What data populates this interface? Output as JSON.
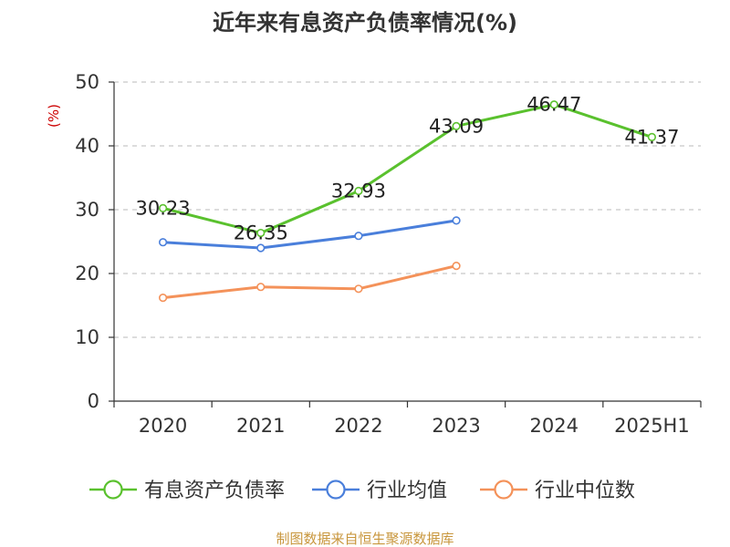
{
  "title": "近年来有息资产负债率情况(%)",
  "source": "制图数据来自恒生聚源数据库",
  "chart_data": {
    "type": "line",
    "title": "近年来有息资产负债率情况(%)",
    "ylabel": "(%)",
    "xlabel": "",
    "categories": [
      "2020",
      "2021",
      "2022",
      "2023",
      "2024",
      "2025H1"
    ],
    "ylim": [
      0,
      50
    ],
    "yticks": [
      0,
      10,
      20,
      30,
      40,
      50
    ],
    "grid": true,
    "legend_position": "bottom",
    "series": [
      {
        "name": "有息资产负债率",
        "color": "#5ac12e",
        "values": [
          30.23,
          26.35,
          32.93,
          43.09,
          46.47,
          41.37
        ],
        "labels": [
          "30.23",
          "26.35",
          "32.93",
          "43.09",
          "46.47",
          "41.37"
        ]
      },
      {
        "name": "行业均值",
        "color": "#4a7fdb",
        "values": [
          24.9,
          24.0,
          25.9,
          28.3,
          null,
          null
        ]
      },
      {
        "name": "行业中位数",
        "color": "#f4925a",
        "values": [
          16.2,
          17.9,
          17.6,
          21.2,
          null,
          null
        ]
      }
    ]
  }
}
